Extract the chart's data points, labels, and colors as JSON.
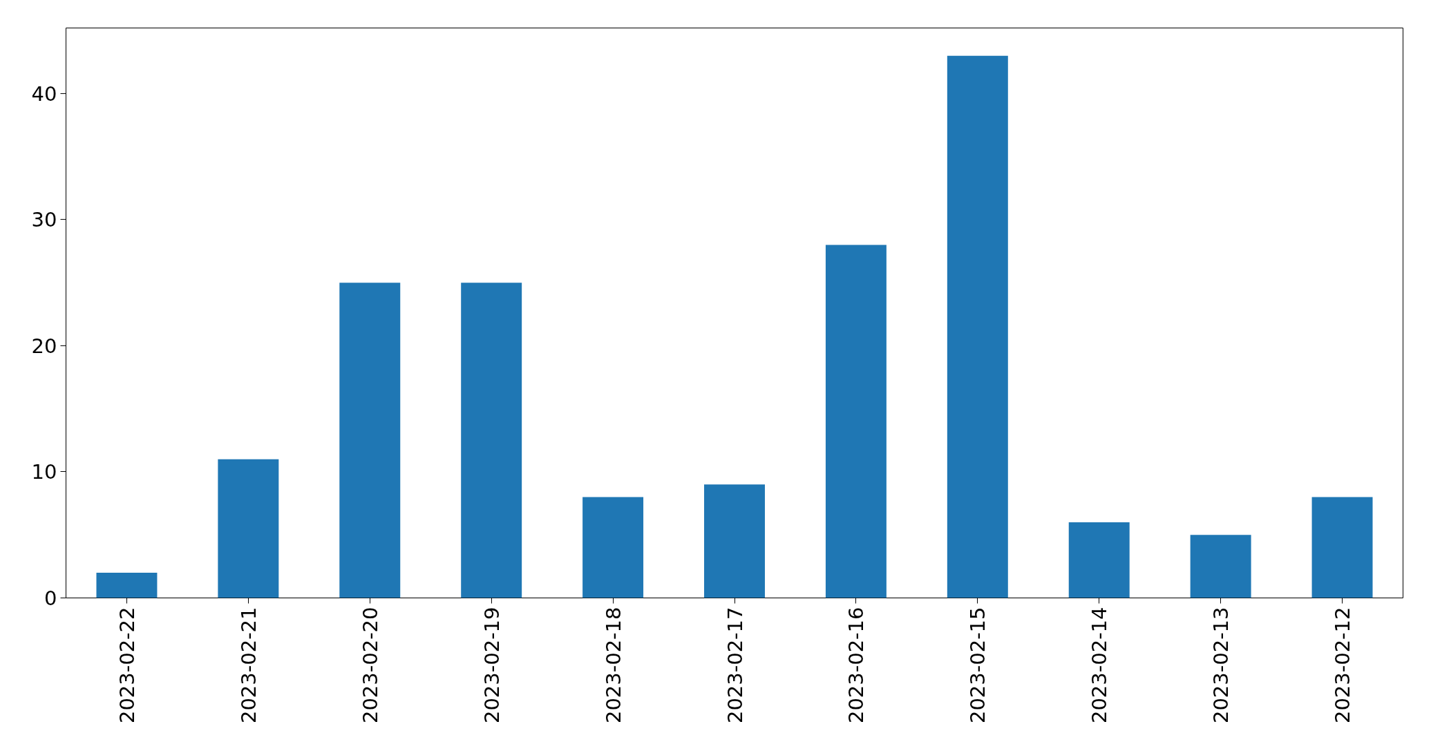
{
  "chart_data": {
    "type": "bar",
    "categories": [
      "2023-02-22",
      "2023-02-21",
      "2023-02-20",
      "2023-02-19",
      "2023-02-18",
      "2023-02-17",
      "2023-02-16",
      "2023-02-15",
      "2023-02-14",
      "2023-02-13",
      "2023-02-12"
    ],
    "values": [
      2,
      11,
      25,
      25,
      8,
      9,
      28,
      43,
      6,
      5,
      8
    ],
    "color": "#1f77b4",
    "ylim": [
      0,
      45.2
    ],
    "yticks": [
      0,
      10,
      20,
      30,
      40
    ]
  }
}
